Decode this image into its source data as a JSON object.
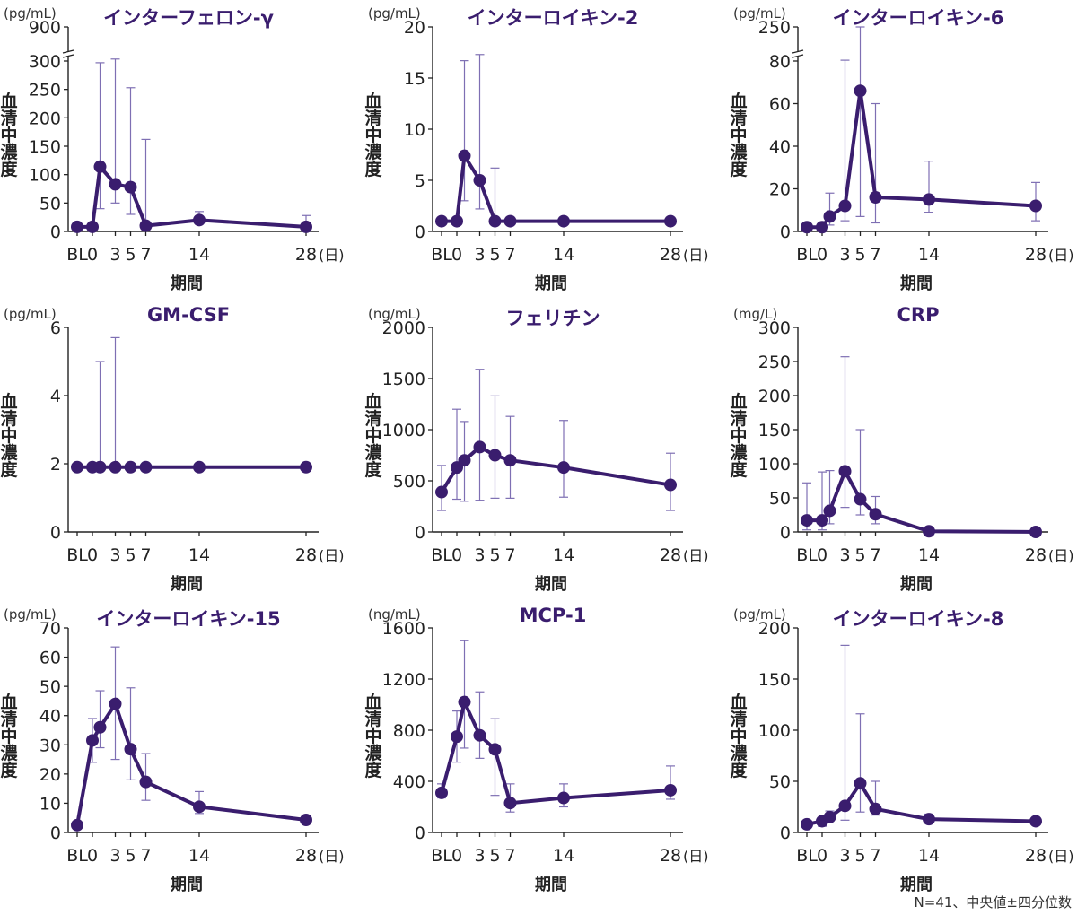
{
  "footnote": "N=41、中央値±四分位数",
  "colors": {
    "series": "#3a1d6e",
    "error_bar": "#7e6fb3",
    "axis": "#222222"
  },
  "chart_data": [
    {
      "type": "line",
      "title": "インターフェロン-γ",
      "unit": "(pg/mL)",
      "ylabel": "血清中濃度",
      "xlabel": "期間",
      "x_unit": "(日)",
      "x_ticks": [
        {
          "label": "BL",
          "x": -2
        },
        {
          "label": "0",
          "x": 0
        },
        {
          "label": "3",
          "x": 3
        },
        {
          "label": "5",
          "x": 5
        },
        {
          "label": "7",
          "x": 7
        },
        {
          "label": "14",
          "x": 14
        },
        {
          "label": "28",
          "x": 28
        }
      ],
      "x_values": [
        -2,
        0,
        1,
        3,
        5,
        7,
        14,
        28
      ],
      "y_broken": true,
      "ylim": [
        0,
        900
      ],
      "y_ticks": [
        0,
        50,
        100,
        150,
        200,
        250,
        300,
        900
      ],
      "median": [
        8,
        8,
        114,
        83,
        78,
        10,
        20,
        8
      ],
      "q1": [
        5,
        5,
        40,
        50,
        30,
        5,
        14,
        4
      ],
      "q3": [
        12,
        12,
        297,
        335,
        253,
        162,
        35,
        28
      ]
    },
    {
      "type": "line",
      "title": "インターロイキン-2",
      "unit": "(pg/mL)",
      "ylabel": "血清中濃度",
      "xlabel": "期間",
      "x_unit": "(日)",
      "x_ticks": [
        {
          "label": "BL",
          "x": -2
        },
        {
          "label": "0",
          "x": 0
        },
        {
          "label": "3",
          "x": 3
        },
        {
          "label": "5",
          "x": 5
        },
        {
          "label": "7",
          "x": 7
        },
        {
          "label": "14",
          "x": 14
        },
        {
          "label": "28",
          "x": 28
        }
      ],
      "x_values": [
        -2,
        0,
        1,
        3,
        5,
        7,
        14,
        28
      ],
      "y_broken": false,
      "ylim": [
        0,
        20
      ],
      "y_ticks": [
        0,
        5,
        10,
        15,
        20
      ],
      "median": [
        1,
        1,
        7.4,
        5,
        1,
        1,
        1,
        1
      ],
      "q1": [
        1,
        1,
        3,
        2.2,
        1,
        1,
        1,
        1
      ],
      "q3": [
        1,
        1,
        16.7,
        17.3,
        6.2,
        1,
        1,
        1
      ]
    },
    {
      "type": "line",
      "title": "インターロイキン-6",
      "unit": "(pg/mL)",
      "ylabel": "血清中濃度",
      "xlabel": "期間",
      "x_unit": "(日)",
      "x_ticks": [
        {
          "label": "BL",
          "x": -2
        },
        {
          "label": "0",
          "x": 0
        },
        {
          "label": "3",
          "x": 3
        },
        {
          "label": "5",
          "x": 5
        },
        {
          "label": "7",
          "x": 7
        },
        {
          "label": "14",
          "x": 14
        },
        {
          "label": "28",
          "x": 28
        }
      ],
      "x_values": [
        -2,
        0,
        1,
        3,
        5,
        7,
        14,
        28
      ],
      "y_broken": true,
      "ylim": [
        0,
        250
      ],
      "y_ticks": [
        0,
        20,
        40,
        60,
        80,
        250
      ],
      "median": [
        2,
        2,
        7,
        12,
        66,
        16,
        15,
        12
      ],
      "q1": [
        1,
        1,
        3,
        5,
        7,
        4,
        9,
        5
      ],
      "q3": [
        3,
        3,
        18,
        84,
        250,
        60,
        33,
        23
      ]
    },
    {
      "type": "line",
      "title": "GM-CSF",
      "unit": "(pg/mL)",
      "ylabel": "血清中濃度",
      "xlabel": "期間",
      "x_unit": "(日)",
      "x_ticks": [
        {
          "label": "BL",
          "x": -2
        },
        {
          "label": "0",
          "x": 0
        },
        {
          "label": "3",
          "x": 3
        },
        {
          "label": "5",
          "x": 5
        },
        {
          "label": "7",
          "x": 7
        },
        {
          "label": "14",
          "x": 14
        },
        {
          "label": "28",
          "x": 28
        }
      ],
      "x_values": [
        -2,
        0,
        1,
        3,
        5,
        7,
        14,
        28
      ],
      "y_broken": false,
      "ylim": [
        0,
        6
      ],
      "y_ticks": [
        0,
        2,
        4,
        6
      ],
      "median": [
        1.9,
        1.9,
        1.9,
        1.9,
        1.9,
        1.9,
        1.9,
        1.9
      ],
      "q1": [
        1.9,
        1.9,
        1.9,
        1.9,
        1.9,
        1.9,
        1.9,
        1.9
      ],
      "q3": [
        1.9,
        1.9,
        5.0,
        5.7,
        1.9,
        1.9,
        1.9,
        1.9
      ]
    },
    {
      "type": "line",
      "title": "フェリチン",
      "unit": "(ng/mL)",
      "ylabel": "血清中濃度",
      "xlabel": "期間",
      "x_unit": "(日)",
      "x_ticks": [
        {
          "label": "BL",
          "x": -2
        },
        {
          "label": "0",
          "x": 0
        },
        {
          "label": "3",
          "x": 3
        },
        {
          "label": "5",
          "x": 5
        },
        {
          "label": "7",
          "x": 7
        },
        {
          "label": "14",
          "x": 14
        },
        {
          "label": "28",
          "x": 28
        }
      ],
      "x_values": [
        -2,
        0,
        1,
        3,
        5,
        7,
        14,
        28
      ],
      "y_broken": false,
      "ylim": [
        0,
        2000
      ],
      "y_ticks": [
        0,
        500,
        1000,
        1500,
        2000
      ],
      "median": [
        390,
        630,
        700,
        830,
        750,
        700,
        630,
        460
      ],
      "q1": [
        210,
        320,
        300,
        310,
        330,
        330,
        340,
        210
      ],
      "q3": [
        650,
        1200,
        1080,
        1590,
        1330,
        1130,
        1090,
        770
      ]
    },
    {
      "type": "line",
      "title": "CRP",
      "unit": "(mg/L)",
      "ylabel": "血清中濃度",
      "xlabel": "期間",
      "x_unit": "(日)",
      "x_ticks": [
        {
          "label": "BL",
          "x": -2
        },
        {
          "label": "0",
          "x": 0
        },
        {
          "label": "3",
          "x": 3
        },
        {
          "label": "5",
          "x": 5
        },
        {
          "label": "7",
          "x": 7
        },
        {
          "label": "14",
          "x": 14
        },
        {
          "label": "28",
          "x": 28
        }
      ],
      "x_values": [
        -2,
        0,
        1,
        3,
        5,
        7,
        14,
        28
      ],
      "y_broken": false,
      "ylim": [
        0,
        300
      ],
      "y_ticks": [
        0,
        50,
        100,
        150,
        200,
        250,
        300
      ],
      "median": [
        17,
        17,
        31,
        89,
        48,
        26,
        1,
        0
      ],
      "q1": [
        3,
        3,
        12,
        36,
        25,
        12,
        0,
        0
      ],
      "q3": [
        72,
        88,
        90,
        257,
        150,
        52,
        4,
        1
      ]
    },
    {
      "type": "line",
      "title": "インターロイキン-15",
      "unit": "(pg/mL)",
      "ylabel": "血清中濃度",
      "xlabel": "期間",
      "x_unit": "(日)",
      "x_ticks": [
        {
          "label": "BL",
          "x": -2
        },
        {
          "label": "0",
          "x": 0
        },
        {
          "label": "3",
          "x": 3
        },
        {
          "label": "5",
          "x": 5
        },
        {
          "label": "7",
          "x": 7
        },
        {
          "label": "14",
          "x": 14
        },
        {
          "label": "28",
          "x": 28
        }
      ],
      "x_values": [
        -2,
        0,
        1,
        3,
        5,
        7,
        14,
        28
      ],
      "y_broken": false,
      "ylim": [
        0,
        70
      ],
      "y_ticks": [
        0,
        10,
        20,
        30,
        40,
        50,
        60,
        70
      ],
      "median": [
        2.5,
        31.5,
        36,
        44,
        28.5,
        17.3,
        8.8,
        4.3
      ],
      "q1": [
        2.5,
        24,
        29,
        25,
        18,
        11,
        6.5,
        3.5
      ],
      "q3": [
        2.5,
        39,
        48.5,
        63.5,
        49.5,
        27,
        14,
        5
      ]
    },
    {
      "type": "line",
      "title": "MCP-1",
      "unit": "(ng/mL)",
      "ylabel": "血清中濃度",
      "xlabel": "期間",
      "x_unit": "(日)",
      "x_ticks": [
        {
          "label": "BL",
          "x": -2
        },
        {
          "label": "0",
          "x": 0
        },
        {
          "label": "3",
          "x": 3
        },
        {
          "label": "5",
          "x": 5
        },
        {
          "label": "7",
          "x": 7
        },
        {
          "label": "14",
          "x": 14
        },
        {
          "label": "28",
          "x": 28
        }
      ],
      "x_values": [
        -2,
        0,
        1,
        3,
        5,
        7,
        14,
        28
      ],
      "y_broken": false,
      "ylim": [
        0,
        1600
      ],
      "y_ticks": [
        0,
        400,
        800,
        1200,
        1600
      ],
      "median": [
        310,
        750,
        1020,
        760,
        650,
        230,
        270,
        330
      ],
      "q1": [
        270,
        550,
        660,
        580,
        290,
        160,
        200,
        260
      ],
      "q3": [
        380,
        950,
        1500,
        1100,
        890,
        380,
        380,
        520
      ]
    },
    {
      "type": "line",
      "title": "インターロイキン-8",
      "unit": "(pg/mL)",
      "ylabel": "血清中濃度",
      "xlabel": "期間",
      "x_unit": "(日)",
      "x_ticks": [
        {
          "label": "BL",
          "x": -2
        },
        {
          "label": "0",
          "x": 0
        },
        {
          "label": "3",
          "x": 3
        },
        {
          "label": "5",
          "x": 5
        },
        {
          "label": "7",
          "x": 7
        },
        {
          "label": "14",
          "x": 14
        },
        {
          "label": "28",
          "x": 28
        }
      ],
      "x_values": [
        -2,
        0,
        1,
        3,
        5,
        7,
        14,
        28
      ],
      "y_broken": false,
      "ylim": [
        0,
        200
      ],
      "y_ticks": [
        0,
        50,
        100,
        150,
        200
      ],
      "median": [
        8,
        11,
        15,
        26,
        48,
        23,
        13,
        11
      ],
      "q1": [
        6,
        6,
        11,
        12,
        20,
        17,
        10,
        8
      ],
      "q3": [
        11,
        14,
        21,
        183,
        116,
        50,
        18,
        13
      ]
    }
  ]
}
